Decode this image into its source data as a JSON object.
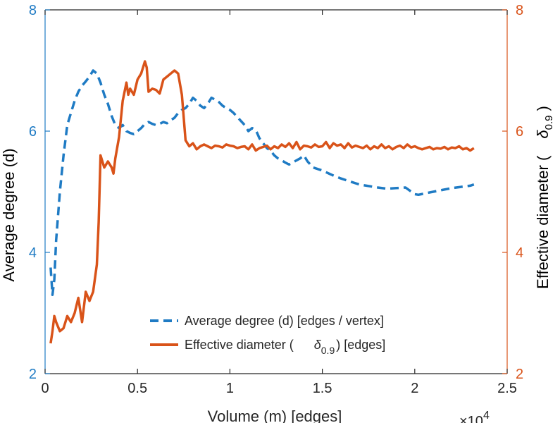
{
  "chart_data": {
    "type": "line",
    "xlabel": "Volume (m) [edges]",
    "x_exponent_label": "×10",
    "x_exponent_power": "4",
    "xlim": [
      0,
      2.5
    ],
    "x_ticks": [
      0,
      0.5,
      1,
      1.5,
      2,
      2.5
    ],
    "x_tick_labels": [
      "0",
      "0.5",
      "1",
      "1.5",
      "2",
      "2.5"
    ],
    "y_left": {
      "label": "Average degree (d)",
      "lim": [
        2,
        8
      ],
      "ticks": [
        2,
        4,
        6,
        8
      ],
      "tick_labels": [
        "2",
        "4",
        "6",
        "8"
      ],
      "color": "#1f7bc4"
    },
    "y_right": {
      "label": "Effective diameter (",
      "label_symbol": "δ",
      "label_sub": "0.9",
      "label_close": ")",
      "lim": [
        2,
        8
      ],
      "ticks": [
        2,
        4,
        6,
        8
      ],
      "tick_labels": [
        "2",
        "4",
        "6",
        "8"
      ],
      "color": "#d95319"
    },
    "grid": false,
    "legend_position": "bottom-right",
    "legend": [
      {
        "text": "Average degree (d) [edges / vertex]"
      },
      {
        "text_before": "Effective diameter (",
        "symbol": "δ",
        "sub": "0.9",
        "text_after": ") [edges]"
      }
    ],
    "series": [
      {
        "name": "Average degree (d) [edges / vertex]",
        "axis": "left",
        "style": "dashed",
        "color": "#1f7bc4",
        "x": [
          0.03,
          0.04,
          0.05,
          0.06,
          0.08,
          0.1,
          0.12,
          0.14,
          0.16,
          0.18,
          0.2,
          0.22,
          0.24,
          0.26,
          0.28,
          0.3,
          0.32,
          0.34,
          0.36,
          0.38,
          0.4,
          0.42,
          0.44,
          0.46,
          0.48,
          0.5,
          0.52,
          0.54,
          0.56,
          0.58,
          0.6,
          0.62,
          0.64,
          0.66,
          0.68,
          0.7,
          0.72,
          0.74,
          0.76,
          0.78,
          0.8,
          0.82,
          0.84,
          0.86,
          0.88,
          0.9,
          0.92,
          0.94,
          0.96,
          0.98,
          1.0,
          1.02,
          1.05,
          1.08,
          1.1,
          1.12,
          1.14,
          1.16,
          1.18,
          1.2,
          1.22,
          1.24,
          1.26,
          1.28,
          1.3,
          1.32,
          1.35,
          1.38,
          1.4,
          1.42,
          1.45,
          1.5,
          1.55,
          1.6,
          1.7,
          1.8,
          1.85,
          1.9,
          1.95,
          2.0,
          2.02,
          2.05,
          2.1,
          2.15,
          2.2,
          2.25,
          2.3,
          2.32
        ],
        "y": [
          3.75,
          3.3,
          3.55,
          4.2,
          5.0,
          5.6,
          6.1,
          6.3,
          6.5,
          6.65,
          6.75,
          6.82,
          6.9,
          7.0,
          6.95,
          6.8,
          6.6,
          6.45,
          6.25,
          6.1,
          6.05,
          6.1,
          6.0,
          5.97,
          5.95,
          6.0,
          6.05,
          6.12,
          6.15,
          6.12,
          6.1,
          6.12,
          6.15,
          6.13,
          6.18,
          6.22,
          6.3,
          6.35,
          6.38,
          6.45,
          6.55,
          6.5,
          6.42,
          6.38,
          6.45,
          6.55,
          6.52,
          6.48,
          6.42,
          6.38,
          6.35,
          6.3,
          6.2,
          6.1,
          6.0,
          6.05,
          6.02,
          5.88,
          5.8,
          5.72,
          5.68,
          5.6,
          5.55,
          5.52,
          5.48,
          5.45,
          5.5,
          5.55,
          5.6,
          5.5,
          5.4,
          5.35,
          5.28,
          5.22,
          5.12,
          5.07,
          5.05,
          5.06,
          5.07,
          4.96,
          4.95,
          4.97,
          5.0,
          5.03,
          5.06,
          5.08,
          5.1,
          5.12
        ]
      },
      {
        "name": "Effective diameter (δ0.9) [edges]",
        "axis": "right",
        "style": "solid",
        "color": "#d95319",
        "x": [
          0.03,
          0.04,
          0.05,
          0.06,
          0.08,
          0.1,
          0.12,
          0.14,
          0.16,
          0.18,
          0.2,
          0.22,
          0.24,
          0.26,
          0.28,
          0.29,
          0.3,
          0.32,
          0.34,
          0.36,
          0.37,
          0.38,
          0.4,
          0.42,
          0.44,
          0.45,
          0.46,
          0.48,
          0.5,
          0.52,
          0.54,
          0.55,
          0.56,
          0.58,
          0.6,
          0.62,
          0.64,
          0.66,
          0.68,
          0.7,
          0.72,
          0.74,
          0.76,
          0.78,
          0.8,
          0.82,
          0.84,
          0.86,
          0.88,
          0.9,
          0.92,
          0.94,
          0.96,
          0.98,
          1.0,
          1.02,
          1.04,
          1.06,
          1.08,
          1.1,
          1.12,
          1.14,
          1.16,
          1.18,
          1.2,
          1.22,
          1.24,
          1.26,
          1.28,
          1.3,
          1.32,
          1.34,
          1.36,
          1.38,
          1.4,
          1.42,
          1.44,
          1.46,
          1.48,
          1.5,
          1.52,
          1.54,
          1.56,
          1.58,
          1.6,
          1.62,
          1.64,
          1.66,
          1.68,
          1.7,
          1.72,
          1.74,
          1.76,
          1.78,
          1.8,
          1.82,
          1.84,
          1.86,
          1.88,
          1.9,
          1.92,
          1.94,
          1.96,
          1.98,
          2.0,
          2.02,
          2.04,
          2.06,
          2.08,
          2.1,
          2.12,
          2.14,
          2.16,
          2.18,
          2.2,
          2.22,
          2.24,
          2.26,
          2.28,
          2.3,
          2.32
        ],
        "y": [
          2.5,
          2.7,
          2.95,
          2.85,
          2.7,
          2.75,
          2.95,
          2.85,
          3.0,
          3.25,
          2.85,
          3.35,
          3.2,
          3.35,
          3.8,
          4.5,
          5.6,
          5.4,
          5.5,
          5.4,
          5.3,
          5.55,
          5.9,
          6.5,
          6.8,
          6.6,
          6.7,
          6.6,
          6.85,
          6.95,
          7.15,
          7.05,
          6.65,
          6.7,
          6.68,
          6.62,
          6.85,
          6.9,
          6.95,
          7.0,
          6.95,
          6.6,
          5.85,
          5.75,
          5.8,
          5.7,
          5.75,
          5.78,
          5.75,
          5.72,
          5.76,
          5.75,
          5.73,
          5.78,
          5.76,
          5.75,
          5.72,
          5.74,
          5.75,
          5.7,
          5.78,
          5.68,
          5.72,
          5.74,
          5.76,
          5.7,
          5.75,
          5.72,
          5.78,
          5.74,
          5.8,
          5.72,
          5.82,
          5.7,
          5.76,
          5.75,
          5.73,
          5.78,
          5.74,
          5.75,
          5.82,
          5.72,
          5.8,
          5.76,
          5.78,
          5.72,
          5.8,
          5.73,
          5.76,
          5.74,
          5.72,
          5.76,
          5.7,
          5.75,
          5.72,
          5.78,
          5.72,
          5.75,
          5.7,
          5.74,
          5.76,
          5.72,
          5.78,
          5.73,
          5.75,
          5.72,
          5.7,
          5.72,
          5.74,
          5.7,
          5.72,
          5.71,
          5.74,
          5.7,
          5.73,
          5.72,
          5.75,
          5.7,
          5.72,
          5.68,
          5.72
        ]
      }
    ]
  }
}
